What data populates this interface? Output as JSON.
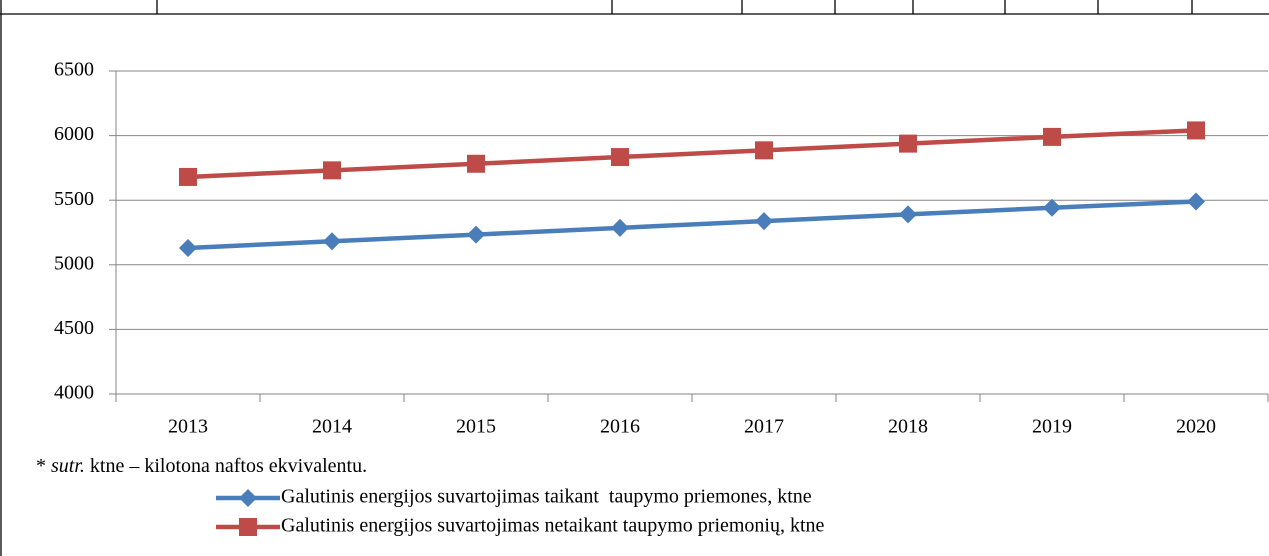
{
  "chart_data": {
    "type": "line",
    "categories": [
      "2013",
      "2014",
      "2015",
      "2016",
      "2017",
      "2018",
      "2019",
      "2020"
    ],
    "series": [
      {
        "name": "Galutinis energijos suvartojimas taikant  taupymo priemones, ktne",
        "color": "#4a7ebb",
        "marker": "diamond",
        "values": [
          5130,
          5182,
          5234,
          5286,
          5338,
          5390,
          5442,
          5490
        ]
      },
      {
        "name": "Galutinis energijos suvartojimas netaikant taupymo priemonių, ktne",
        "color": "#be4b48",
        "marker": "square",
        "values": [
          5680,
          5731,
          5782,
          5834,
          5886,
          5938,
          5990,
          6040
        ]
      }
    ],
    "ylim": [
      4000,
      6500
    ],
    "yticks": [
      4000,
      4500,
      5000,
      5500,
      6000,
      6500
    ],
    "grid": true,
    "note": {
      "star": "*",
      "abbr": "sutr.",
      "text": "ktne – kilotona naftos ekvivalentu."
    }
  }
}
